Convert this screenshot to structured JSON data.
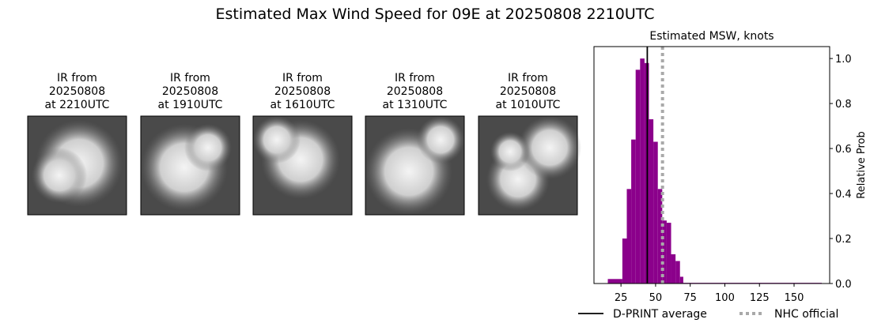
{
  "title": "Estimated Max Wind Speed for 09E at 20250808 2210UTC",
  "panels": [
    {
      "caption": [
        "IR from",
        "20250808",
        "at 2210UTC"
      ]
    },
    {
      "caption": [
        "IR from",
        "20250808",
        "at 1910UTC"
      ]
    },
    {
      "caption": [
        "IR from",
        "20250808",
        "at 1610UTC"
      ]
    },
    {
      "caption": [
        "IR from",
        "20250808",
        "at 1310UTC"
      ]
    },
    {
      "caption": [
        "IR from",
        "20250808",
        "at 1010UTC"
      ]
    }
  ],
  "chart_data": {
    "type": "histogram",
    "title": "Estimated MSW, knots",
    "y_label": "Relative Prob",
    "bins": [
      15.5,
      26,
      29.2,
      32.4,
      35.6,
      38.8,
      42,
      45.2,
      48.4,
      51.6,
      54.8,
      58,
      61.2,
      64.4,
      67.6,
      70,
      170
    ],
    "values": [
      0.02,
      0.2,
      0.42,
      0.64,
      0.95,
      1.0,
      0.98,
      0.73,
      0.63,
      0.42,
      0.28,
      0.27,
      0.13,
      0.1,
      0.03,
      0.003
    ],
    "color": "#8b008b",
    "xlim": [
      5.5,
      175.7
    ],
    "ylim": [
      0,
      1.053
    ],
    "xticks": [
      25,
      50,
      75,
      100,
      125,
      150
    ],
    "yticks": [
      {
        "value": 0,
        "label": "0.0"
      },
      0.2,
      0.4,
      0.6,
      0.8,
      {
        "value": 1,
        "label": "1.0"
      }
    ],
    "lines": [
      {
        "name": "D-PRINT average",
        "value": 44,
        "color": "#000000",
        "dash": false
      },
      {
        "name": "NHC official",
        "value": 55,
        "color": "#a9a9a9",
        "dash": true
      }
    ]
  }
}
